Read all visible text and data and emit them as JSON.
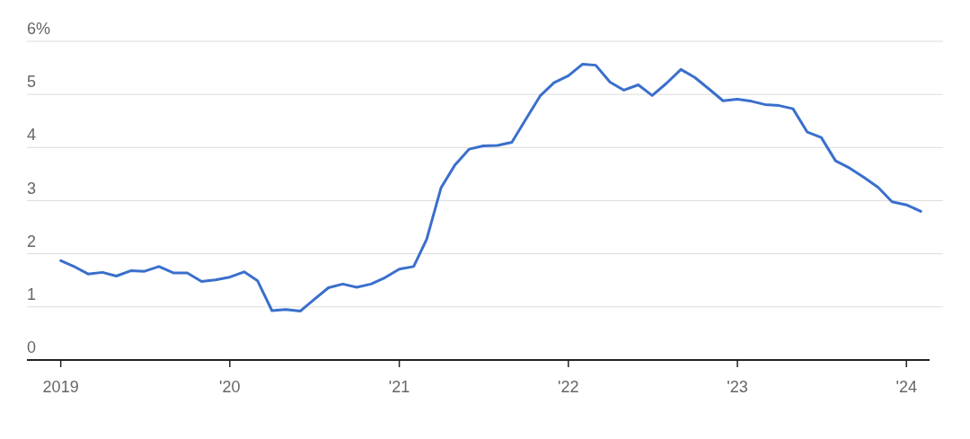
{
  "chart_data": {
    "type": "line",
    "x": [
      "2019-01",
      "2019-02",
      "2019-03",
      "2019-04",
      "2019-05",
      "2019-06",
      "2019-07",
      "2019-08",
      "2019-09",
      "2019-10",
      "2019-11",
      "2019-12",
      "2020-01",
      "2020-02",
      "2020-03",
      "2020-04",
      "2020-05",
      "2020-06",
      "2020-07",
      "2020-08",
      "2020-09",
      "2020-10",
      "2020-11",
      "2020-12",
      "2021-01",
      "2021-02",
      "2021-03",
      "2021-04",
      "2021-05",
      "2021-06",
      "2021-07",
      "2021-08",
      "2021-09",
      "2021-10",
      "2021-11",
      "2021-12",
      "2022-01",
      "2022-02",
      "2022-03",
      "2022-04",
      "2022-05",
      "2022-06",
      "2022-07",
      "2022-08",
      "2022-09",
      "2022-10",
      "2022-11",
      "2022-12",
      "2023-01",
      "2023-02",
      "2023-03",
      "2023-04",
      "2023-05",
      "2023-06",
      "2023-07",
      "2023-08",
      "2023-09",
      "2023-10",
      "2023-11",
      "2023-12",
      "2024-01",
      "2024-02"
    ],
    "series": [
      {
        "color": "#3a6fcc",
        "values": [
          1.87,
          1.75,
          1.62,
          1.65,
          1.58,
          1.68,
          1.67,
          1.76,
          1.64,
          1.64,
          1.48,
          1.51,
          1.56,
          1.66,
          1.49,
          0.93,
          0.95,
          0.92,
          1.14,
          1.36,
          1.43,
          1.37,
          1.43,
          1.55,
          1.71,
          1.76,
          2.27,
          3.24,
          3.67,
          3.97,
          4.03,
          4.04,
          4.1,
          4.53,
          4.97,
          5.22,
          5.35,
          5.57,
          5.55,
          5.23,
          5.08,
          5.18,
          4.98,
          5.21,
          5.47,
          5.32,
          5.1,
          4.88,
          4.91,
          4.87,
          4.81,
          4.79,
          4.73,
          4.29,
          4.19,
          3.75,
          3.61,
          3.44,
          3.25,
          2.98,
          2.92,
          2.8
        ]
      }
    ],
    "xlim": [
      "2018-10-20",
      "2024-02-20"
    ],
    "xticks": [
      {
        "value": "2019-01",
        "label": "2019"
      },
      {
        "value": "2020-01",
        "label": "'20"
      },
      {
        "value": "2021-01",
        "label": "'21"
      },
      {
        "value": "2022-01",
        "label": "'22"
      },
      {
        "value": "2023-01",
        "label": "'23"
      },
      {
        "value": "2024-01",
        "label": "'24"
      }
    ],
    "ylim": [
      0,
      6
    ],
    "yticks": [
      0,
      1,
      2,
      3,
      4,
      5,
      {
        "value": 6,
        "label": "6%"
      }
    ],
    "grid": "y",
    "line_style": "solid"
  }
}
